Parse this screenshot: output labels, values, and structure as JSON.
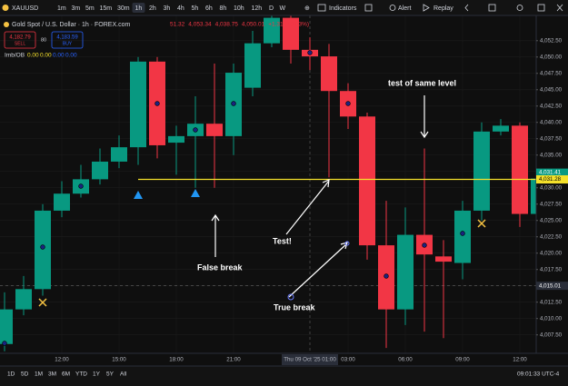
{
  "toolbar": {
    "symbol": "XAUUSD",
    "intervals": [
      "1m",
      "3m",
      "5m",
      "15m",
      "30m",
      "1h",
      "2h",
      "3h",
      "4h",
      "5h",
      "6h",
      "8h",
      "10h",
      "12h",
      "D",
      "W"
    ],
    "active_interval": "1h",
    "buttons": [
      "Indicators",
      "Alert",
      "Replay"
    ]
  },
  "legend": {
    "title": "Gold Spot / U.S. Dollar · 1h · FOREX.com",
    "ohlc": [
      "51.32",
      "4,053.34",
      "4,038.75",
      "4,050.01",
      "+1.31 (+0.03%)"
    ],
    "sell": {
      "price": "4,182.79",
      "label": "SELL"
    },
    "spread": "80",
    "buy": {
      "price": "4,183.59",
      "label": "BUY"
    },
    "indicator": {
      "name": "Imb/OB",
      "values": [
        "0.00",
        "0.00",
        "0.00",
        "0.00"
      ]
    }
  },
  "chart_data": {
    "type": "candlestick",
    "categories": [
      null,
      null,
      null,
      "12:00",
      null,
      null,
      "15:00",
      null,
      null,
      "18:00",
      null,
      null,
      "21:00",
      null,
      null,
      null,
      "Thu 09 Oct '25  01:00",
      null,
      "03:00",
      null,
      null,
      "06:00",
      null,
      null,
      "09:00",
      null,
      null,
      "12:00",
      null
    ],
    "open": [
      4006.1,
      4011.4,
      4014.5,
      4026.5,
      4029.1,
      4031.3,
      4034.0,
      4036.2,
      4049.3,
      4036.9,
      4037.9,
      4039.8,
      4037.9,
      4045.3,
      4052.1,
      4056.0,
      4051.1,
      4050.1,
      4044.8,
      4040.9,
      4021.2,
      4011.4,
      4022.8,
      4019.5,
      4018.5,
      4026.5,
      4038.6,
      4039.5,
      4026.0
    ],
    "high": [
      4014.0,
      4016.5,
      4027.5,
      4031.0,
      4033.5,
      4036.0,
      4038.0,
      4050.0,
      4050.0,
      4039.5,
      4044.0,
      4049.0,
      4049.0,
      4054.0,
      4057.0,
      4057.0,
      4053.0,
      4052.0,
      4046.0,
      4041.5,
      4028.0,
      4027.0,
      4036.0,
      4022.0,
      4028.0,
      4040.0,
      4040.5,
      4040.0,
      4032.5
    ],
    "low": [
      4005.0,
      4010.5,
      4013.5,
      4025.5,
      4028.5,
      4030.5,
      4033.0,
      4033.5,
      4034.5,
      4032.0,
      4030.0,
      4030.0,
      4035.0,
      4044.0,
      4051.5,
      4049.0,
      4048.0,
      4031.6,
      4039.0,
      4019.0,
      4005.5,
      4009.0,
      4008.0,
      4007.0,
      4016.0,
      4025.0,
      4038.0,
      4024.0,
      4025.0
    ],
    "close": [
      4011.4,
      4014.5,
      4026.5,
      4029.1,
      4031.3,
      4034.0,
      4036.2,
      4049.3,
      4036.5,
      4037.9,
      4039.8,
      4037.9,
      4047.6,
      4052.1,
      4056.0,
      4051.1,
      4050.1,
      4044.8,
      4040.9,
      4021.2,
      4011.4,
      4022.8,
      4019.8,
      4018.7,
      4026.5,
      4038.6,
      4039.5,
      4026.0,
      4031.41
    ],
    "up_color": "#089981",
    "down_color": "#f23645",
    "ylim": [
      4004.68,
      4056.36
    ],
    "yticks": [
      {
        "value": 4007.5,
        "label": "4,007.50"
      },
      {
        "value": 4010,
        "label": "4,010.00"
      },
      {
        "value": 4012.5,
        "label": "4,012.50"
      },
      {
        "value": 4015,
        "label": "4,015.00"
      },
      {
        "value": 4017.5,
        "label": "4,017.50"
      },
      {
        "value": 4020,
        "label": "4,020.00"
      },
      {
        "value": 4022.5,
        "label": "4,022.50"
      },
      {
        "value": 4025,
        "label": "4,025.00"
      },
      {
        "value": 4027.5,
        "label": "4,027.50"
      },
      {
        "value": 4030,
        "label": "4,030.00"
      },
      {
        "value": 4032.5,
        "label": "4,032.50"
      },
      {
        "value": 4035,
        "label": "4,035.00"
      },
      {
        "value": 4037.5,
        "label": "4,037.50"
      },
      {
        "value": 4040,
        "label": "4,040.00"
      },
      {
        "value": 4042.5,
        "label": "4,042.50"
      },
      {
        "value": 4045,
        "label": "4,045.00"
      },
      {
        "value": 4047.5,
        "label": "4,047.50"
      },
      {
        "value": 4050,
        "label": "4,050.00"
      },
      {
        "value": 4052.5,
        "label": "4,052.50"
      }
    ],
    "grid": true,
    "level": {
      "value": 4031.28,
      "label": "4,031.28",
      "color": "#f5e12b"
    },
    "last_price": {
      "value": 4031.41,
      "label": "4,031.41"
    },
    "crosshair": {
      "value": 4015.01,
      "label": "4,015.01"
    },
    "annotations": [
      "test of same level",
      "Test!",
      "False break",
      "True break"
    ]
  },
  "bottom_bar": {
    "ranges": [
      "1D",
      "5D",
      "1M",
      "3M",
      "6M",
      "YTD",
      "1Y",
      "5Y",
      "All"
    ],
    "clock": "09:01:33 UTC-4"
  }
}
